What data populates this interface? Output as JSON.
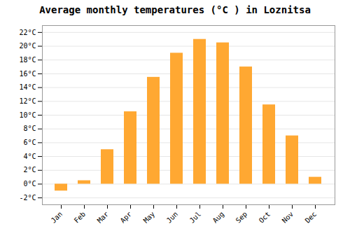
{
  "chart_data": {
    "type": "bar",
    "title": "Average monthly temperatures (°C ) in Loznitsa",
    "categories": [
      "Jan",
      "Feb",
      "Mar",
      "Apr",
      "May",
      "Jun",
      "Jul",
      "Aug",
      "Sep",
      "Oct",
      "Nov",
      "Dec"
    ],
    "values": [
      -1.0,
      0.5,
      5.0,
      10.5,
      15.5,
      19.0,
      21.0,
      20.5,
      17.0,
      11.5,
      7.0,
      1.0
    ],
    "color": "#FFA832",
    "ylim": [
      -3,
      23
    ],
    "yticks": [
      {
        "value": -2,
        "label": "-2°C"
      },
      {
        "value": 0,
        "label": "0°C"
      },
      {
        "value": 2,
        "label": "2°C"
      },
      {
        "value": 4,
        "label": "4°C"
      },
      {
        "value": 6,
        "label": "6°C"
      },
      {
        "value": 8,
        "label": "8°C"
      },
      {
        "value": 10,
        "label": "10°C"
      },
      {
        "value": 12,
        "label": "12°C"
      },
      {
        "value": 14,
        "label": "14°C"
      },
      {
        "value": 16,
        "label": "16°C"
      },
      {
        "value": 18,
        "label": "18°C"
      },
      {
        "value": 20,
        "label": "20°C"
      },
      {
        "value": 22,
        "label": "22°C"
      }
    ],
    "grid": true
  }
}
